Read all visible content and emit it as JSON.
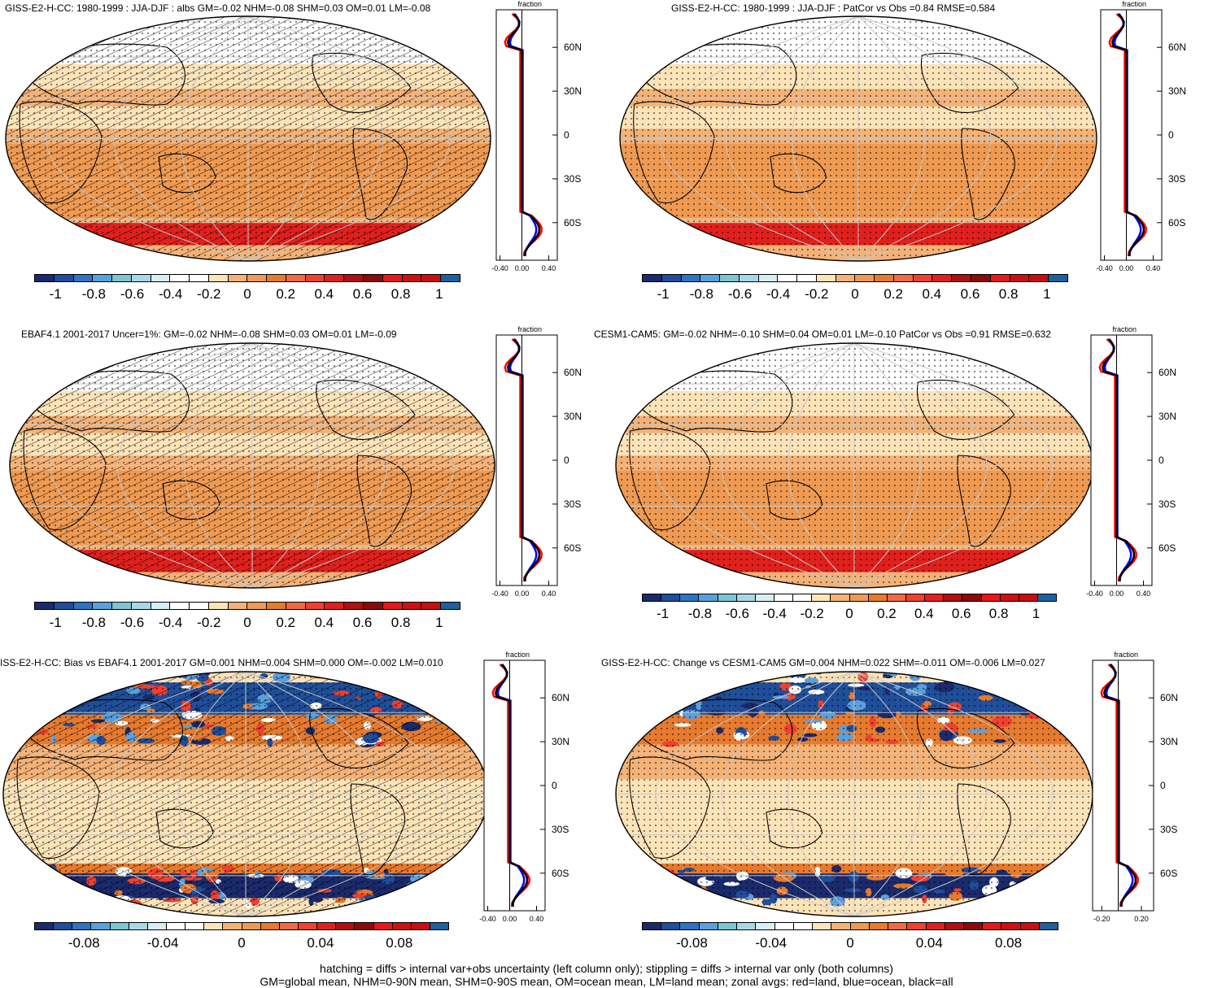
{
  "panels": [
    {
      "id": "p1",
      "title": "GISS-E2-H-CC: 1980-1999 : JJA-DJF : albs GM=-0.02 NHM=-0.08 SHM=0.03 OM=0.01 LM=-0.08",
      "hatch": true,
      "noise": false,
      "cbar_labels": [
        "-1",
        "-0.8",
        "-0.6",
        "-0.4",
        "-0.2",
        "0",
        "0.2",
        "0.4",
        "0.6",
        "0.8",
        "1"
      ],
      "zonal_xlabels": [
        "-0.40",
        "0.00",
        "0.40"
      ],
      "zonal_title": "fraction"
    },
    {
      "id": "p2",
      "title": "GISS-E2-H-CC: 1980-1999 : JJA-DJF : PatCor vs Obs =0.84 RMSE=0.584",
      "hatch": false,
      "noise": false,
      "cbar_labels": [
        "-1",
        "-0.8",
        "-0.6",
        "-0.4",
        "-0.2",
        "0",
        "0.2",
        "0.4",
        "0.6",
        "0.8",
        "1"
      ],
      "zonal_xlabels": [
        "-0.40",
        "0.00",
        "0.40"
      ],
      "zonal_title": "fraction"
    },
    {
      "id": "p3",
      "title": "EBAF4.1 2001-2017 Uncer=1%: GM=-0.02 NHM=-0.08 SHM=0.03 OM=0.01 LM=-0.09",
      "hatch": true,
      "noise": false,
      "cbar_labels": [
        "-1",
        "-0.8",
        "-0.6",
        "-0.4",
        "-0.2",
        "0",
        "0.2",
        "0.4",
        "0.6",
        "0.8",
        "1"
      ],
      "zonal_xlabels": [
        "-0.40",
        "0.00",
        "0.40"
      ],
      "zonal_title": "fraction"
    },
    {
      "id": "p4",
      "title": "CESM1-CAM5: GM=-0.02 NHM=-0.10 SHM=0.04 OM=0.01 LM=-0.10 PatCor vs Obs =0.91 RMSE=0.632",
      "hatch": false,
      "noise": false,
      "cbar_labels": [
        "-1",
        "-0.8",
        "-0.6",
        "-0.4",
        "-0.2",
        "0",
        "0.2",
        "0.4",
        "0.6",
        "0.8",
        "1"
      ],
      "zonal_xlabels": [
        "-0.40",
        "0.00",
        "0.40"
      ],
      "zonal_title": "fraction"
    },
    {
      "id": "p5",
      "title": "ISS-E2-H-CC: Bias vs EBAF4.1 2001-2017 GM=0.001 NHM=0.004 SHM=0.000 OM=-0.002 LM=0.010",
      "hatch": true,
      "noise": true,
      "cbar_labels": [
        "-0.08",
        "-0.04",
        "0",
        "0.04",
        "0.08"
      ],
      "zonal_xlabels": [
        "-0.40",
        "0.00",
        "0.40"
      ],
      "zonal_title": "fraction"
    },
    {
      "id": "p6",
      "title": "GISS-E2-H-CC: Change vs CESM1-CAM5 GM=0.004 NHM=0.022 SHM=-0.011 OM=-0.006 LM=0.027",
      "hatch": false,
      "noise": true,
      "cbar_labels": [
        "-0.08",
        "-0.04",
        "0",
        "0.04",
        "0.08"
      ],
      "zonal_xlabels": [
        "-0.20",
        "0.20"
      ],
      "zonal_title": "fraction"
    }
  ],
  "lat_labels": [
    "60N",
    "30N",
    "0",
    "30S",
    "60S"
  ],
  "colorbar_colors": [
    "#1a2a6c",
    "#1f4e9a",
    "#2f73c4",
    "#5aa0dd",
    "#7fc4d0",
    "#a8d8e8",
    "#d8eef5",
    "#ffffff",
    "#ffffff",
    "#fde3b8",
    "#f4b277",
    "#ef9a52",
    "#e67a2e",
    "#f06a45",
    "#f04030",
    "#e0201c",
    "#b01010",
    "#8b0a0a",
    "#e81818",
    "#d01010",
    "#c80e0e",
    "#2060a0"
  ],
  "colors": {
    "land_line": "#000000",
    "zonal_land": "#ff0000",
    "zonal_ocean": "#0000ff",
    "zonal_all": "#000000"
  },
  "captions": [
    "hatching = diffs > internal var+obs uncertainty (left column only); stippling = diffs > internal var only (both columns)",
    "GM=global mean, NHM=0-90N mean, SHM=0-90S mean, OM=ocean mean, LM=land mean; zonal avgs: red=land, blue=ocean, black=all"
  ]
}
